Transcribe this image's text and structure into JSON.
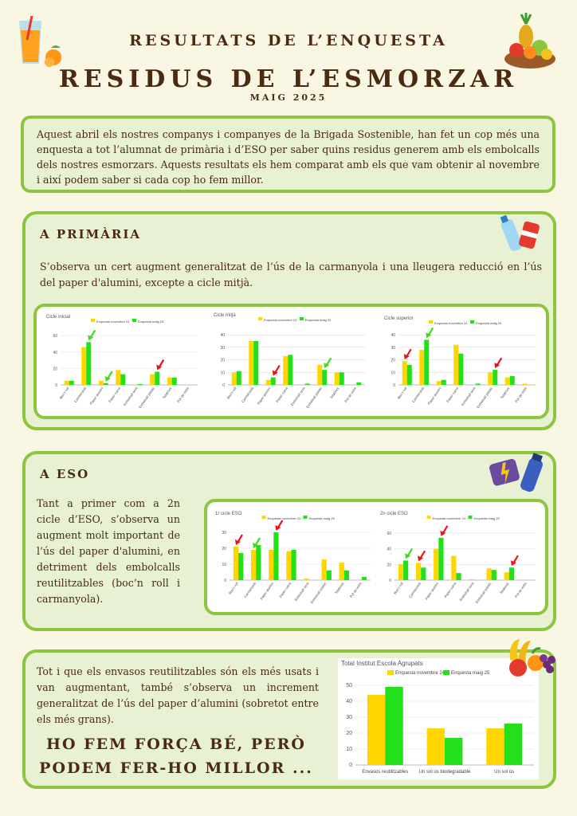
{
  "header": {
    "subtitle": "RESULTATS DE L’ENQUESTA",
    "title": "RESIDUS DE L’ESMORZAR",
    "date": "MAIG 2025"
  },
  "intro": "Aquest abril els nostres companys i companyes de la Brigada Sostenible, han fet un cop més una enquesta a tot l’alumnat de primària i d’ESO per saber quins residus generem amb els embolcalls dels nostres esmorzars. Aquests resultats els hem comparat amb els que vam obtenir al novembre i així podem saber si cada cop ho fem millor.",
  "primaria": {
    "title": "A PRIMÀRIA",
    "text": "S’observa un cert augment generalitzat de l’ús de la carmanyola i una lleugera reducció en l’ús del paper d'alumini, excepte a cicle mitjà."
  },
  "eso": {
    "title": "A ESO",
    "text": "Tant a primer com a 2n cicle d’ESO, s’observa un augment molt important de l’ús del paper d'alumini, en detriment dels embolcalls reutilitzables (boc’n roll i carmanyola)."
  },
  "total": {
    "text": "Tot i que els envasos reutilitzables són els més usats i van augmentant, també s’observa un increment generalitzat de l’ús del paper d’alumini (sobretot entre els més grans).",
    "slogan": "HO FEM FORÇA BÉ, PERÒ PODEM FER-HO MILLOR ..."
  },
  "colors": {
    "nov": "#ffd600",
    "maig": "#22e01a",
    "arrow_red": "#e8141e",
    "arrow_green": "#3ddc1e",
    "border": "#8cc63f"
  },
  "icons": [
    "juice-glass-icon",
    "fruit-bowl-icon",
    "water-bottle-can-icon",
    "energy-drink-icon",
    "fruit-bunch-icon"
  ],
  "chart_data": [
    {
      "type": "bar",
      "title": "Cicle inicial",
      "categories": [
        "Boc'n roll",
        "Carmanyola",
        "Paper alumini",
        "Paper cuina",
        "Embolcall cera",
        "Embolcall plàstic",
        "Tetabrick",
        "Pot de vidre"
      ],
      "series": [
        {
          "name": "Enquesta novembre 24",
          "values": [
            5,
            46,
            5,
            18,
            0,
            13,
            9,
            0
          ]
        },
        {
          "name": "Enquesta maig 25",
          "values": [
            5,
            52,
            2,
            13,
            1,
            16,
            9,
            0
          ]
        }
      ],
      "yticks": [
        0,
        20,
        40,
        60
      ],
      "ylim": [
        0,
        64
      ]
    },
    {
      "type": "bar",
      "title": "Cicle mitjà",
      "categories": [
        "Boc'n roll",
        "Carmanyola",
        "Paper alumini",
        "Paper cuina",
        "Embolcall cera",
        "Embolcall plàstic",
        "Tetabrick",
        "Pot de vidre"
      ],
      "series": [
        {
          "name": "Enquesta novembre 24",
          "values": [
            10,
            35,
            4,
            23,
            0,
            16,
            10,
            0
          ]
        },
        {
          "name": "Enquesta maig 25",
          "values": [
            11,
            35,
            6,
            24,
            1,
            12,
            10,
            2
          ]
        }
      ],
      "yticks": [
        0,
        10,
        20,
        30,
        40
      ],
      "ylim": [
        0,
        42
      ]
    },
    {
      "type": "bar",
      "title": "Cicle superior",
      "categories": [
        "Boc'n roll",
        "Carmanyola",
        "Paper alumini",
        "Paper cuina",
        "Embolcall cera",
        "Embolcall plàstic",
        "Tetabrick",
        "Pot de vidre"
      ],
      "series": [
        {
          "name": "Enquesta novembre 24",
          "values": [
            19,
            28,
            3,
            32,
            0,
            10,
            6,
            1
          ]
        },
        {
          "name": "Enquesta maig 25",
          "values": [
            16,
            36,
            4,
            25,
            1,
            12,
            7,
            0
          ]
        }
      ],
      "yticks": [
        0,
        10,
        20,
        30,
        40
      ],
      "ylim": [
        0,
        42
      ]
    },
    {
      "type": "bar",
      "title": "1r cicle ESO",
      "categories": [
        "Boc'n roll",
        "Carmanyola",
        "Paper alumini",
        "Paper cuina",
        "Embolcall cera",
        "Embolcall plàstic",
        "Tetabrick",
        "Pot de vidre"
      ],
      "series": [
        {
          "name": "Enquesta novembre 24",
          "values": [
            21,
            19,
            19,
            18,
            1,
            13,
            11,
            0
          ]
        },
        {
          "name": "Enquesta maig 25",
          "values": [
            17,
            22,
            30,
            19,
            0,
            6,
            6,
            2
          ]
        }
      ],
      "yticks": [
        0,
        10,
        20,
        30
      ],
      "ylim": [
        0,
        32
      ]
    },
    {
      "type": "bar",
      "title": "2n cicle ESO",
      "categories": [
        "Boc'n roll",
        "Carmanyola",
        "Paper alumini",
        "Paper cuina",
        "Embolcall cera",
        "Embolcall plàstic",
        "Tetabrick",
        "Pot de vidre"
      ],
      "series": [
        {
          "name": "Enquesta novembre 24",
          "values": [
            20,
            22,
            40,
            31,
            1,
            15,
            10,
            0
          ]
        },
        {
          "name": "Enquesta maig 25",
          "values": [
            25,
            16,
            54,
            9,
            0,
            13,
            16,
            0
          ]
        }
      ],
      "yticks": [
        0,
        20,
        40,
        60
      ],
      "ylim": [
        0,
        65
      ]
    },
    {
      "type": "bar",
      "title": "Total Institut Escola Agrupats",
      "categories": [
        "Envasos reutilitzables",
        "Un sol ús biodegradable",
        "Un sol ús"
      ],
      "series": [
        {
          "name": "Enquesta novembre 24",
          "values": [
            44,
            23,
            23
          ]
        },
        {
          "name": "Enquesta maig 25",
          "values": [
            49,
            17,
            26
          ]
        }
      ],
      "yticks": [
        0,
        10,
        20,
        30,
        40,
        50
      ],
      "ylim": [
        0,
        52
      ]
    }
  ]
}
